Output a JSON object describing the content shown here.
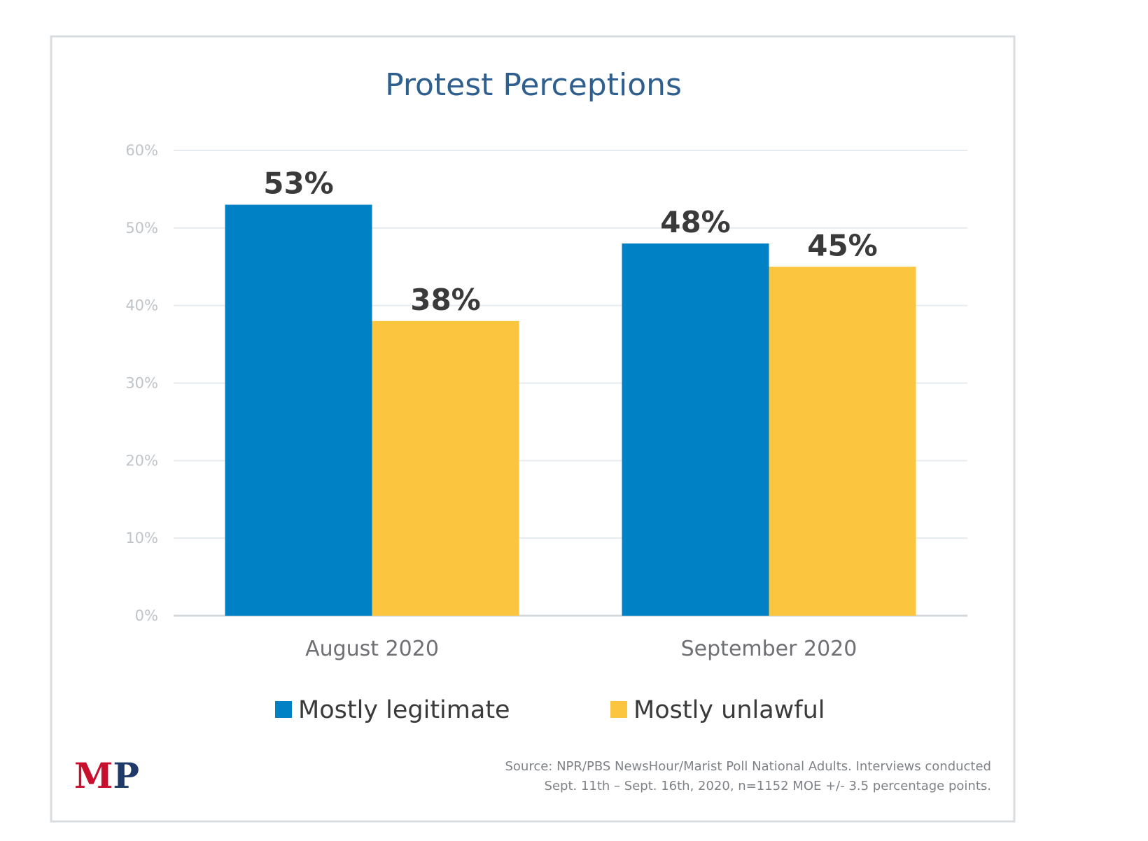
{
  "chart_data": {
    "type": "bar",
    "title": "Protest Perceptions",
    "categories": [
      "August 2020",
      "September 2020"
    ],
    "series": [
      {
        "name": "Mostly legitimate",
        "values": [
          53,
          48
        ],
        "color": "#0081C6"
      },
      {
        "name": "Mostly unlawful",
        "values": [
          38,
          45
        ],
        "color": "#FBC540"
      }
    ],
    "data_labels": [
      [
        "53%",
        "48%"
      ],
      [
        "38%",
        "45%"
      ]
    ],
    "ylim": [
      0,
      60
    ],
    "yticks": [
      0,
      10,
      20,
      30,
      40,
      50,
      60
    ],
    "ytick_labels": [
      "0%",
      "10%",
      "20%",
      "30%",
      "40%",
      "50%",
      "60%"
    ],
    "grid": true,
    "legend_position": "bottom",
    "xlabel": "",
    "ylabel": ""
  },
  "footer": {
    "logo_text": "MP",
    "logo_colors": {
      "M": "#C8102E",
      "P": "#1F3A68"
    },
    "source_line1": "Source: NPR/PBS NewsHour/Marist Poll National Adults. Interviews conducted",
    "source_line2": "Sept. 11th – Sept. 16th, 2020, n=1152 MOE +/- 3.5 percentage points."
  },
  "colors": {
    "title": "#2F5F8F",
    "frame": "#D9DCDF",
    "grid": "#E6EBEF"
  }
}
